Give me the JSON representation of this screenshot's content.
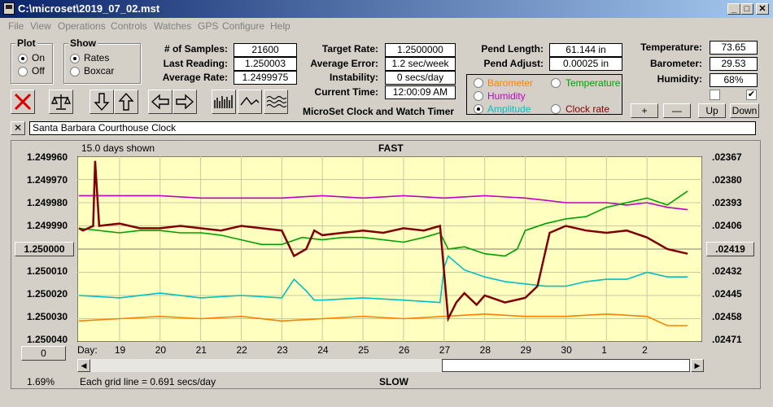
{
  "window": {
    "title": "C:\\microset\\2019_07_02.mst",
    "min": "_",
    "max": "□",
    "close": "✕"
  },
  "menu": [
    "File",
    "View",
    "Operations",
    "Controls",
    "Watches",
    "GPS",
    "Configure",
    "Help"
  ],
  "plot_group": {
    "title": "Plot",
    "options": [
      "On",
      "Off"
    ],
    "selected": "On"
  },
  "show_group": {
    "title": "Show",
    "options": [
      "Rates",
      "Boxcar"
    ],
    "selected": "Rates"
  },
  "fields1": [
    {
      "label": "# of Samples:",
      "value": "21600"
    },
    {
      "label": "Last Reading:",
      "value": "1.250003"
    },
    {
      "label": "Average Rate:",
      "value": "1.2499975"
    }
  ],
  "fields2": [
    {
      "label": "Target Rate:",
      "value": "1.2500000"
    },
    {
      "label": "Average Error:",
      "value": "1.2 sec/week"
    },
    {
      "label": "Instability:",
      "value": "0 secs/day"
    },
    {
      "label": "Current Time:",
      "value": "12:00:09 AM"
    }
  ],
  "fields3": [
    {
      "label": "Pend Length:",
      "value": "61.144 in"
    },
    {
      "label": "Pend Adjust:",
      "value": "0.00025 in"
    }
  ],
  "fields4": [
    {
      "label": "Temperature:",
      "value": "73.65"
    },
    {
      "label": "Barometer:",
      "value": "29.53"
    },
    {
      "label": "Humidity:",
      "value": "68%"
    }
  ],
  "app_caption": "MicroSet Clock and Watch Timer",
  "plot_options": [
    {
      "label": "Barometer",
      "color": "#ff8000",
      "checked": false
    },
    {
      "label": "Temperature",
      "color": "#00a000",
      "checked": false
    },
    {
      "label": "Humidity",
      "color": "#c000c0",
      "checked": false
    },
    {
      "label": "Amplitude",
      "color": "#00c0c0",
      "checked": true
    },
    {
      "label": "Clock rate",
      "color": "#800000",
      "checked": false
    }
  ],
  "small_buttons": [
    "+",
    "—",
    "Up",
    "Down"
  ],
  "check1": "",
  "check2": "✔",
  "clock_name": "Santa Barbara Courthouse Clock",
  "clear_button": "✕",
  "chart_data": {
    "type": "line",
    "top_label": "FAST",
    "bottom_label": "SLOW",
    "days_shown": "15.0 days shown",
    "grid_note": "Each grid line = 0.691 secs/day",
    "percent": "1.69%",
    "day_prefix": "Day:",
    "y_left_ticks": [
      "1.249960",
      "1.249970",
      "1.249980",
      "1.249990",
      "1.250000",
      "1.250010",
      "1.250020",
      "1.250030",
      "1.250040"
    ],
    "y_right_ticks": [
      ".02367",
      ".02380",
      ".02393",
      ".02406",
      ".02419",
      ".02432",
      ".02445",
      ".02458",
      ".02471"
    ],
    "y_left_center_button": "1.250000",
    "y_right_center_button": ".02419",
    "zero_button": "0",
    "days": [
      "19",
      "20",
      "21",
      "22",
      "23",
      "24",
      "25",
      "26",
      "27",
      "28",
      "29",
      "30",
      "1",
      "2"
    ],
    "ylim": [
      1.24996,
      1.25004
    ],
    "series": [
      {
        "name": "Clock rate",
        "color": "#800000",
        "x": [
          0,
          0.1,
          0.35,
          0.4,
          0.5,
          1,
          1.5,
          2,
          2.5,
          3,
          3.5,
          4,
          4.5,
          5,
          5.3,
          5.6,
          5.8,
          6,
          6.5,
          7,
          7.5,
          8,
          8.5,
          8.9,
          9.1,
          9.3,
          9.5,
          9.8,
          10,
          10.5,
          11,
          11.3,
          11.6,
          12,
          12.5,
          13,
          13.5,
          14,
          14.5,
          15
        ],
        "y": [
          1.249991,
          1.249992,
          1.24999,
          1.249962,
          1.24999,
          1.249989,
          1.249991,
          1.249991,
          1.24999,
          1.249991,
          1.249992,
          1.24999,
          1.249991,
          1.249992,
          1.250003,
          1.25,
          1.249992,
          1.249994,
          1.249993,
          1.249992,
          1.249993,
          1.249991,
          1.249992,
          1.24999,
          1.25003,
          1.250023,
          1.250019,
          1.250024,
          1.25002,
          1.250023,
          1.250021,
          1.250016,
          1.249993,
          1.24999,
          1.249992,
          1.249993,
          1.249992,
          1.249995,
          1.25,
          1.250002
        ]
      },
      {
        "name": "Temperature",
        "color": "#00a000",
        "x": [
          0,
          1,
          1.5,
          2,
          2.5,
          3,
          3.5,
          4,
          4.5,
          5,
          5.5,
          6,
          6.5,
          7,
          7.5,
          8,
          8.5,
          8.9,
          9.1,
          9.5,
          10,
          10.5,
          10.8,
          11,
          11.5,
          12,
          12.5,
          13,
          13.5,
          14,
          14.5,
          15
        ],
        "y": [
          1.249991,
          1.249993,
          1.249992,
          1.249992,
          1.249993,
          1.249993,
          1.249994,
          1.249996,
          1.249998,
          1.249998,
          1.249995,
          1.249996,
          1.249995,
          1.249995,
          1.249996,
          1.249997,
          1.249995,
          1.249993,
          1.25,
          1.249999,
          1.250002,
          1.250003,
          1.25,
          1.249992,
          1.249989,
          1.249987,
          1.249986,
          1.249982,
          1.24998,
          1.249978,
          1.249981,
          1.249975
        ]
      },
      {
        "name": "Humidity",
        "color": "#c000c0",
        "x": [
          0,
          1,
          2,
          3,
          4,
          5,
          6,
          7,
          8,
          9,
          10,
          11,
          11.5,
          12,
          12.5,
          13,
          13.5,
          14,
          14.5,
          15
        ],
        "y": [
          1.249977,
          1.249977,
          1.249977,
          1.249978,
          1.249978,
          1.249978,
          1.249977,
          1.249978,
          1.249977,
          1.249978,
          1.249977,
          1.249978,
          1.249979,
          1.24998,
          1.24998,
          1.24998,
          1.249981,
          1.24998,
          1.249982,
          1.249983
        ]
      },
      {
        "name": "Amplitude",
        "color": "#00c0c0",
        "x": [
          0,
          1,
          2,
          3,
          4,
          5,
          5.3,
          5.6,
          5.8,
          6,
          7,
          8,
          8.9,
          9.0,
          9.1,
          9.5,
          10,
          10.5,
          11,
          11.5,
          12,
          12.5,
          13,
          13.5,
          14,
          14.5,
          15
        ],
        "y": [
          1.25002,
          1.250021,
          1.250019,
          1.250021,
          1.25002,
          1.250021,
          1.250013,
          1.250018,
          1.250022,
          1.250022,
          1.250021,
          1.250022,
          1.250023,
          1.250008,
          1.250003,
          1.250009,
          1.250012,
          1.250014,
          1.250015,
          1.250016,
          1.250016,
          1.250014,
          1.250013,
          1.250013,
          1.25001,
          1.250012,
          1.250012
        ]
      },
      {
        "name": "Barometer",
        "color": "#ff8000",
        "x": [
          0,
          1,
          2,
          3,
          4,
          5,
          6,
          7,
          8,
          9,
          10,
          11,
          12,
          13,
          14,
          14.5,
          15
        ],
        "y": [
          1.250031,
          1.25003,
          1.250029,
          1.25003,
          1.250029,
          1.250031,
          1.25003,
          1.250029,
          1.25003,
          1.250029,
          1.250028,
          1.250029,
          1.250029,
          1.250028,
          1.250029,
          1.250033,
          1.250033
        ]
      }
    ]
  }
}
